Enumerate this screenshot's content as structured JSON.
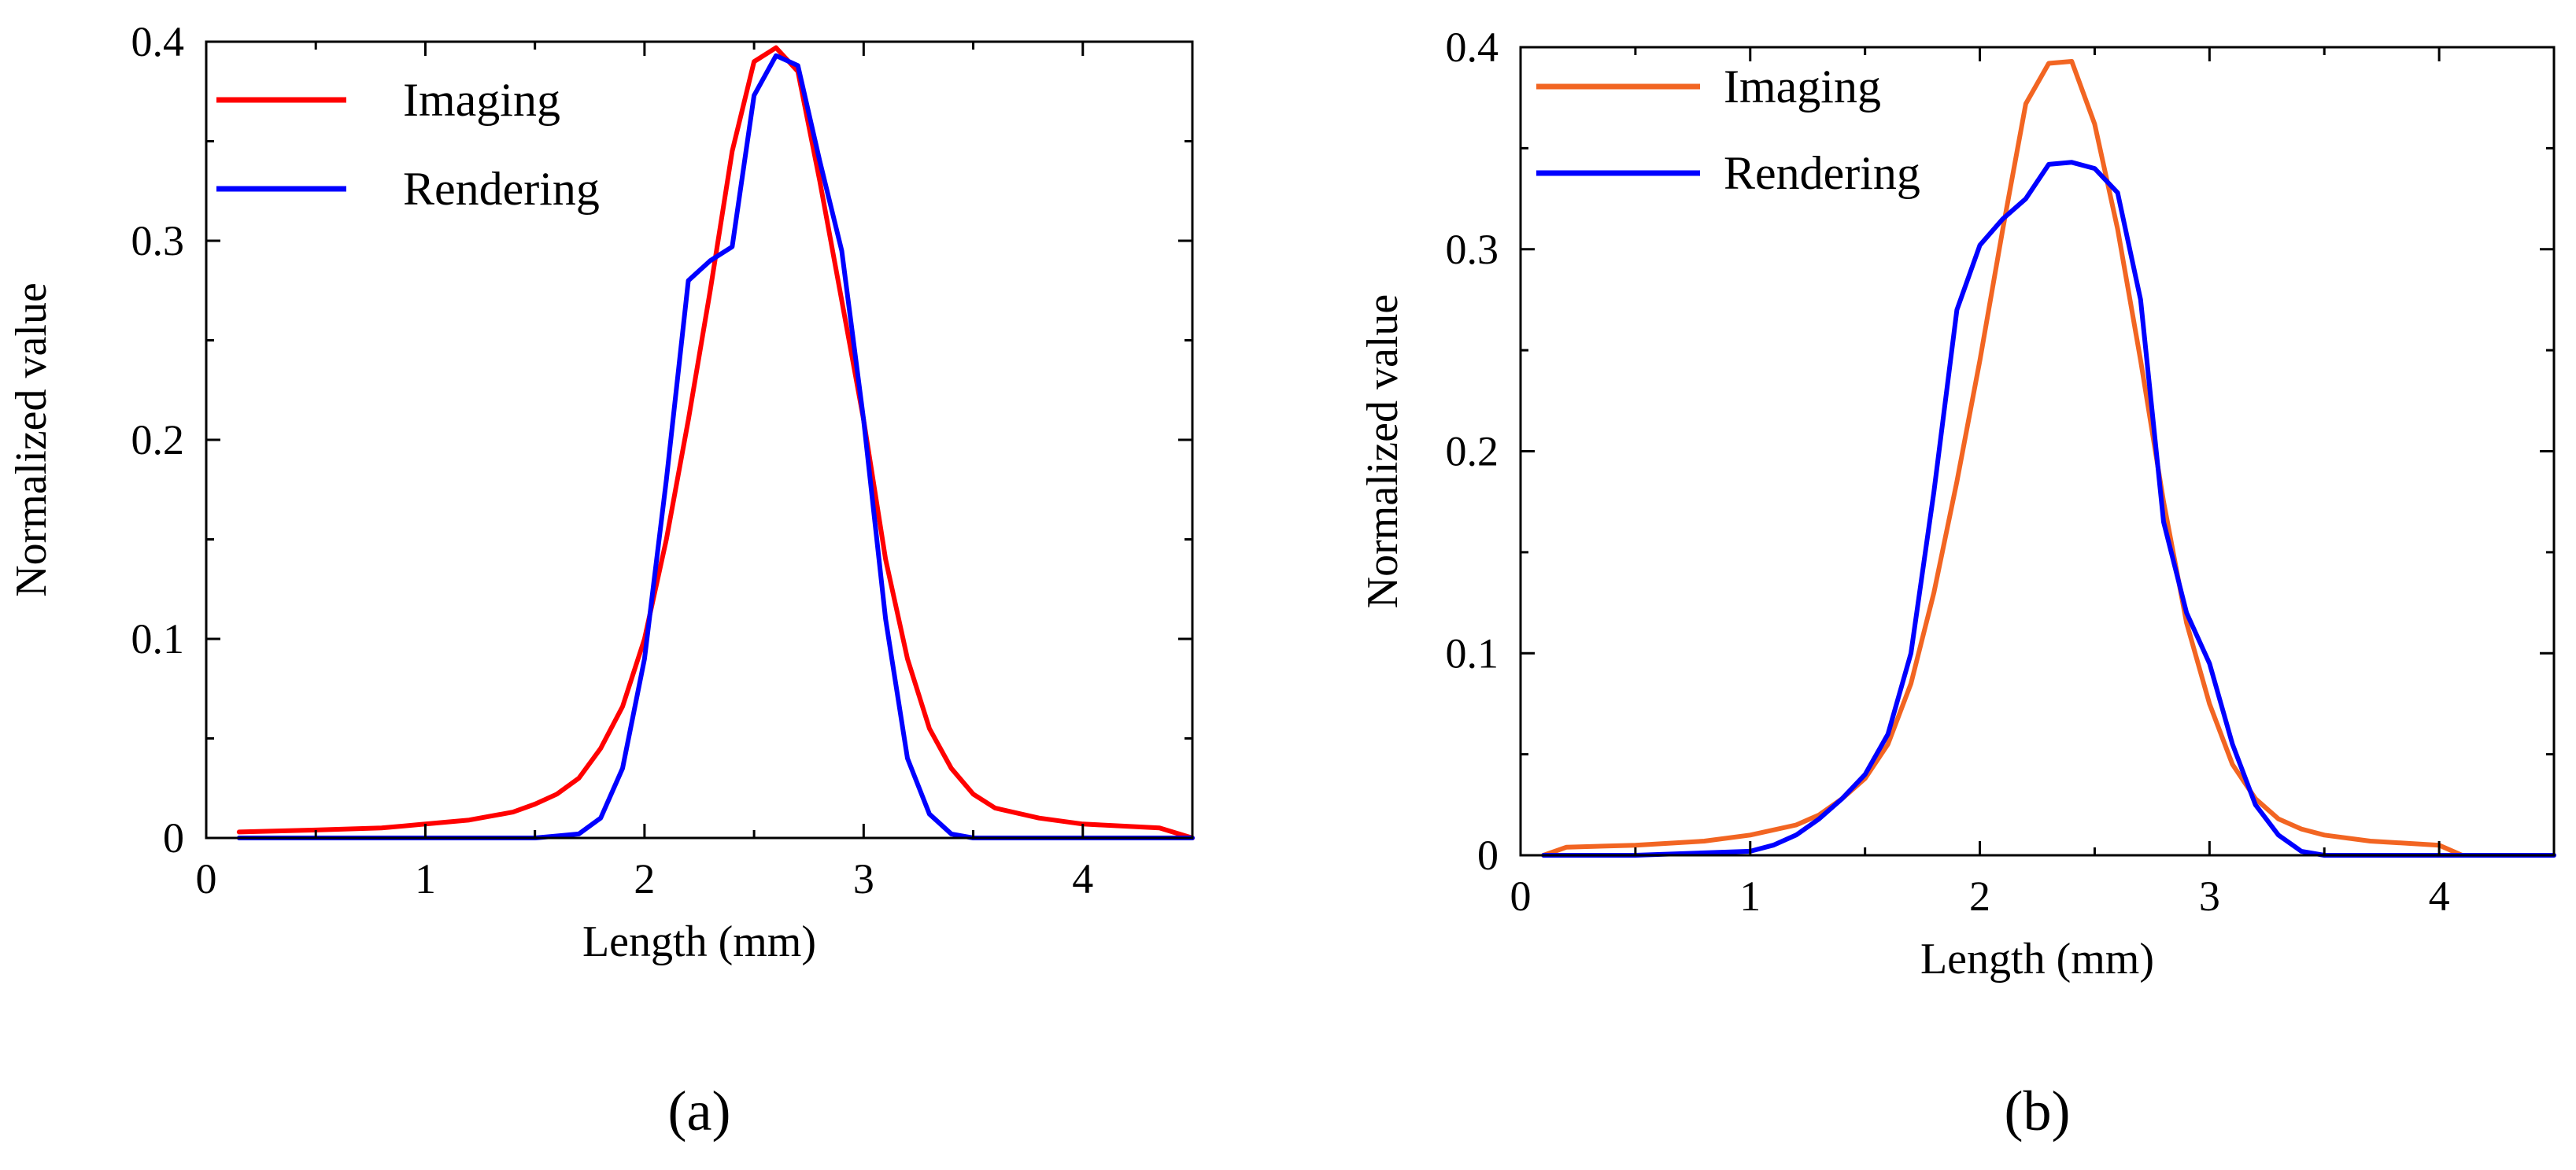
{
  "chart_data": [
    {
      "type": "line",
      "caption": "(a)",
      "xlabel": "Length (mm)",
      "ylabel": "Normalized value",
      "xlim": [
        0,
        4.5
      ],
      "ylim": [
        0,
        0.4
      ],
      "xticks": [
        0,
        1,
        2,
        3,
        4
      ],
      "xtick_labels": [
        "0",
        "1",
        "2",
        "3",
        "4"
      ],
      "yticks": [
        0,
        0.1,
        0.2,
        0.3,
        0.4
      ],
      "ytick_labels": [
        "0",
        "0.1",
        "0.2",
        "0.3",
        "0.4"
      ],
      "legend_position": "top-left",
      "series": [
        {
          "name": "Imaging",
          "color": "#ff0000",
          "x": [
            0.15,
            0.5,
            0.8,
            1.0,
            1.2,
            1.4,
            1.5,
            1.6,
            1.7,
            1.8,
            1.9,
            2.0,
            2.1,
            2.2,
            2.3,
            2.4,
            2.5,
            2.6,
            2.7,
            2.8,
            2.9,
            3.0,
            3.1,
            3.2,
            3.3,
            3.4,
            3.5,
            3.6,
            3.8,
            4.0,
            4.35,
            4.5
          ],
          "y": [
            0.003,
            0.004,
            0.005,
            0.007,
            0.009,
            0.013,
            0.017,
            0.022,
            0.03,
            0.045,
            0.066,
            0.1,
            0.15,
            0.21,
            0.275,
            0.345,
            0.39,
            0.397,
            0.385,
            0.33,
            0.27,
            0.21,
            0.14,
            0.09,
            0.055,
            0.035,
            0.022,
            0.015,
            0.01,
            0.007,
            0.005,
            0.0
          ]
        },
        {
          "name": "Rendering",
          "color": "#0000ff",
          "x": [
            0.15,
            1.0,
            1.5,
            1.6,
            1.7,
            1.8,
            1.9,
            2.0,
            2.1,
            2.2,
            2.3,
            2.4,
            2.5,
            2.6,
            2.7,
            2.8,
            2.9,
            3.0,
            3.1,
            3.2,
            3.3,
            3.4,
            3.5,
            4.0,
            4.5
          ],
          "y": [
            0.0,
            0.0,
            0.0,
            0.001,
            0.002,
            0.01,
            0.035,
            0.09,
            0.18,
            0.28,
            0.29,
            0.297,
            0.373,
            0.393,
            0.388,
            0.34,
            0.295,
            0.21,
            0.11,
            0.04,
            0.012,
            0.002,
            0.0,
            0.0,
            0.0
          ]
        }
      ]
    },
    {
      "type": "line",
      "caption": "(b)",
      "xlabel": "Length (mm)",
      "ylabel": "Normalized value",
      "xlim": [
        0,
        4.5
      ],
      "ylim": [
        0,
        0.4
      ],
      "xticks": [
        0,
        1,
        2,
        3,
        4
      ],
      "xtick_labels": [
        "0",
        "1",
        "2",
        "3",
        "4"
      ],
      "yticks": [
        0,
        0.1,
        0.2,
        0.3,
        0.4
      ],
      "ytick_labels": [
        "0",
        "0.1",
        "0.2",
        "0.3",
        "0.4"
      ],
      "legend_position": "top-left",
      "series": [
        {
          "name": "Imaging",
          "color": "#f26522",
          "x": [
            0.1,
            0.2,
            0.5,
            0.8,
            1.0,
            1.2,
            1.3,
            1.4,
            1.5,
            1.6,
            1.7,
            1.8,
            1.9,
            2.0,
            2.1,
            2.2,
            2.3,
            2.4,
            2.5,
            2.6,
            2.7,
            2.8,
            2.9,
            3.0,
            3.1,
            3.2,
            3.3,
            3.4,
            3.5,
            3.7,
            4.0,
            4.1,
            4.5
          ],
          "y": [
            0.0,
            0.004,
            0.005,
            0.007,
            0.01,
            0.015,
            0.02,
            0.028,
            0.038,
            0.055,
            0.085,
            0.13,
            0.185,
            0.245,
            0.31,
            0.372,
            0.392,
            0.393,
            0.362,
            0.31,
            0.245,
            0.175,
            0.115,
            0.075,
            0.045,
            0.028,
            0.018,
            0.013,
            0.01,
            0.007,
            0.005,
            0.0,
            0.0
          ]
        },
        {
          "name": "Rendering",
          "color": "#0000ff",
          "x": [
            0.1,
            0.5,
            1.0,
            1.1,
            1.2,
            1.3,
            1.4,
            1.5,
            1.6,
            1.7,
            1.8,
            1.9,
            2.0,
            2.1,
            2.2,
            2.3,
            2.4,
            2.5,
            2.6,
            2.7,
            2.8,
            2.9,
            3.0,
            3.1,
            3.2,
            3.3,
            3.4,
            3.5,
            4.0,
            4.5
          ],
          "y": [
            0.0,
            0.0,
            0.002,
            0.005,
            0.01,
            0.018,
            0.028,
            0.04,
            0.06,
            0.1,
            0.18,
            0.27,
            0.302,
            0.315,
            0.325,
            0.342,
            0.343,
            0.34,
            0.328,
            0.275,
            0.165,
            0.12,
            0.095,
            0.055,
            0.025,
            0.01,
            0.002,
            0.0,
            0.0,
            0.0
          ]
        }
      ]
    }
  ]
}
